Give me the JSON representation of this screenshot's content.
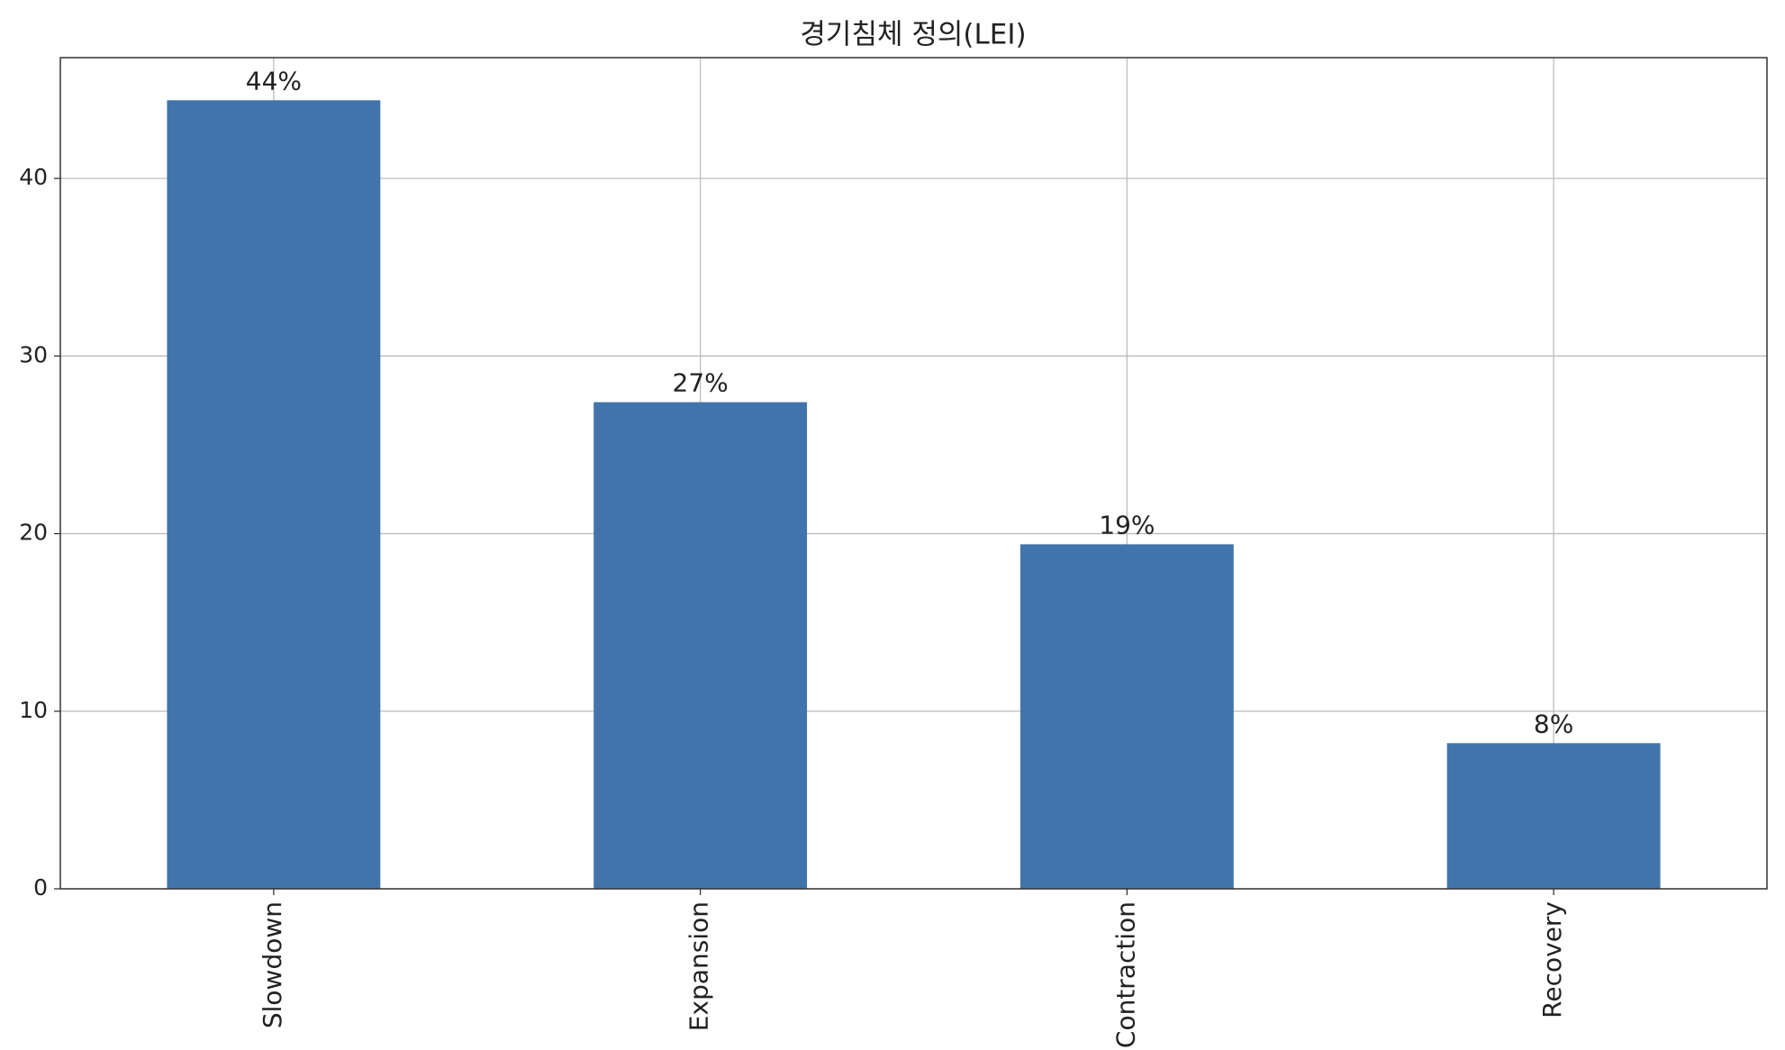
{
  "chart_data": {
    "type": "bar",
    "title": "경기침체 정의(LEI)",
    "categories": [
      "Slowdown",
      "Expansion",
      "Contraction",
      "Recovery"
    ],
    "values": [
      44.4,
      27.4,
      19.4,
      8.2
    ],
    "value_labels": [
      "44%",
      "27%",
      "19%",
      "8%"
    ],
    "color": "#4274ab",
    "ylim": [
      0,
      46.8
    ],
    "yticks": [
      0,
      10,
      20,
      30,
      40
    ],
    "grid": true
  }
}
